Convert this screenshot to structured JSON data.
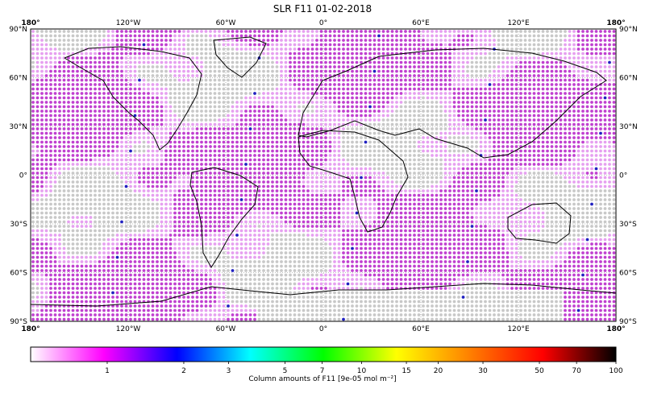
{
  "title": "SLR F11 01-02-2018",
  "map": {
    "lon_range": [
      -180,
      180
    ],
    "lat_range": [
      -90,
      90
    ],
    "lon_ticks": [
      {
        "value": -180,
        "label": "180°"
      },
      {
        "value": -120,
        "label": "120°W"
      },
      {
        "value": -60,
        "label": "60°W"
      },
      {
        "value": 0,
        "label": "0°"
      },
      {
        "value": 60,
        "label": "60°E"
      },
      {
        "value": 120,
        "label": "120°E"
      },
      {
        "value": 180,
        "label": "180°"
      }
    ],
    "lat_ticks": [
      {
        "value": 90,
        "label": "90°N"
      },
      {
        "value": 60,
        "label": "60°N"
      },
      {
        "value": 30,
        "label": "30°N"
      },
      {
        "value": 0,
        "label": "0°"
      },
      {
        "value": -30,
        "label": "30°S"
      },
      {
        "value": -60,
        "label": "60°S"
      },
      {
        "value": -90,
        "label": "90°S"
      }
    ],
    "gridlines": true,
    "colors": {
      "no_data": "#c8c8c8",
      "low": "#e6a0f0",
      "mid": "#c040d0",
      "high": "#2020c0"
    }
  },
  "colorbar": {
    "ticks": [
      {
        "value": 1,
        "label": "1"
      },
      {
        "value": 2,
        "label": "2"
      },
      {
        "value": 3,
        "label": "3"
      },
      {
        "value": 5,
        "label": "5"
      },
      {
        "value": 7,
        "label": "7"
      },
      {
        "value": 10,
        "label": "10"
      },
      {
        "value": 15,
        "label": "15"
      },
      {
        "value": 20,
        "label": "20"
      },
      {
        "value": 30,
        "label": "30"
      },
      {
        "value": 50,
        "label": "50"
      },
      {
        "value": 70,
        "label": "70"
      },
      {
        "value": 100,
        "label": "100"
      }
    ],
    "label": "Column amounts of F11 [9e-05 mol m⁻²]",
    "stops": [
      "#ffffff",
      "#ff00ff",
      "#0000ff",
      "#00ffff",
      "#00ff00",
      "#ffff00",
      "#ff8000",
      "#ff0000",
      "#000000"
    ]
  }
}
